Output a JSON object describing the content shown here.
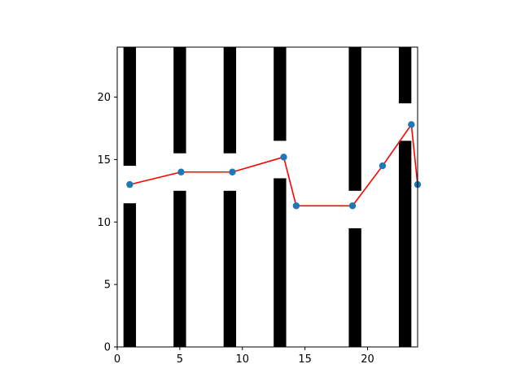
{
  "chart_data": {
    "type": "line",
    "title": "",
    "xlabel": "",
    "ylabel": "",
    "xlim": [
      0,
      24
    ],
    "ylim": [
      0,
      24
    ],
    "grid": false,
    "x_ticks": [
      0,
      5,
      10,
      15,
      20
    ],
    "y_ticks": [
      0,
      5,
      10,
      15,
      20
    ],
    "obstacles": [
      {
        "x_start": 0.5,
        "x_end": 1.5,
        "y_start": 0,
        "y_end": 11.5
      },
      {
        "x_start": 0.5,
        "x_end": 1.5,
        "y_start": 14.5,
        "y_end": 24
      },
      {
        "x_start": 4.5,
        "x_end": 5.5,
        "y_start": 0,
        "y_end": 12.5
      },
      {
        "x_start": 4.5,
        "x_end": 5.5,
        "y_start": 15.5,
        "y_end": 24
      },
      {
        "x_start": 8.5,
        "x_end": 9.5,
        "y_start": 0,
        "y_end": 12.5
      },
      {
        "x_start": 8.5,
        "x_end": 9.5,
        "y_start": 15.5,
        "y_end": 24
      },
      {
        "x_start": 12.5,
        "x_end": 13.5,
        "y_start": 0,
        "y_end": 13.5
      },
      {
        "x_start": 12.5,
        "x_end": 13.5,
        "y_start": 16.5,
        "y_end": 24
      },
      {
        "x_start": 18.5,
        "x_end": 19.5,
        "y_start": 0,
        "y_end": 9.5
      },
      {
        "x_start": 18.5,
        "x_end": 19.5,
        "y_start": 12.5,
        "y_end": 24
      },
      {
        "x_start": 22.5,
        "x_end": 23.5,
        "y_start": 0,
        "y_end": 16.5
      },
      {
        "x_start": 22.5,
        "x_end": 23.5,
        "y_start": 19.5,
        "y_end": 24
      }
    ],
    "series": [
      {
        "x": [
          1.0,
          5.1,
          9.2,
          13.3,
          14.3,
          18.8,
          21.2,
          23.5,
          24.0
        ],
        "y": [
          13.0,
          14.0,
          14.0,
          15.2,
          11.3,
          11.3,
          14.5,
          17.8,
          13.0
        ]
      }
    ],
    "colors": {
      "obstacle": "#000000",
      "line": "#ff0000",
      "marker": "#1f77b4",
      "axes": "#000000"
    }
  }
}
